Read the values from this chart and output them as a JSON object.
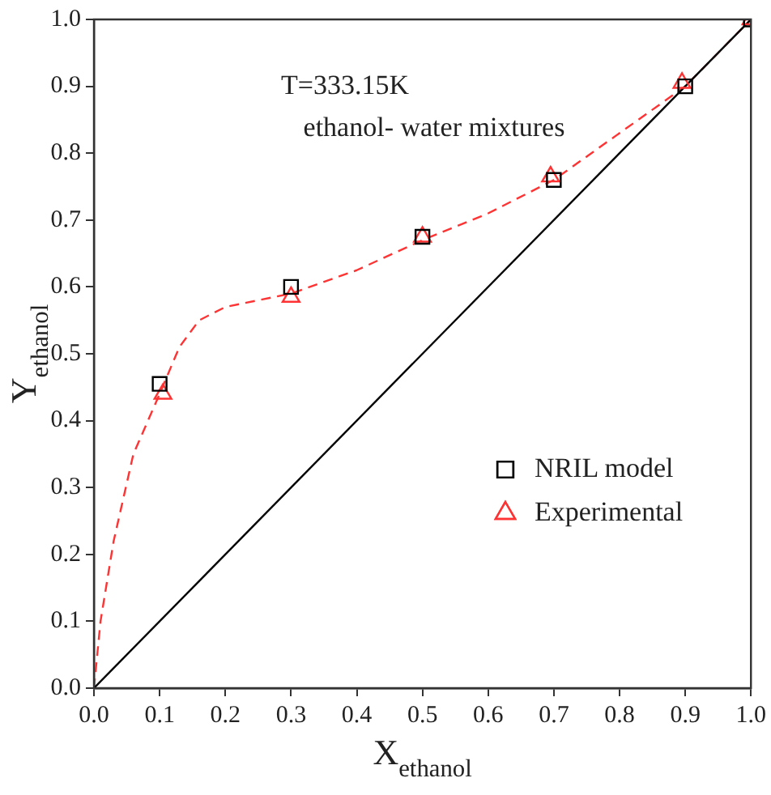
{
  "chart_data": {
    "type": "scatter",
    "xlabel": "X$_{ethanol}$",
    "ylabel": "Y$_{ethanol}$",
    "annotations": [
      "T=333.15K",
      "ethanol- water mixtures"
    ],
    "xlim": [
      0,
      1
    ],
    "ylim": [
      0,
      1
    ],
    "xticks": [
      {
        "value": 0,
        "label": "0.0"
      },
      {
        "value": 0.1,
        "label": "0.1"
      },
      {
        "value": 0.2,
        "label": "0.2"
      },
      {
        "value": 0.3,
        "label": "0.3"
      },
      {
        "value": 0.4,
        "label": "0.4"
      },
      {
        "value": 0.5,
        "label": "0.5"
      },
      {
        "value": 0.6,
        "label": "0.6"
      },
      {
        "value": 0.7,
        "label": "0.7"
      },
      {
        "value": 0.8,
        "label": "0.8"
      },
      {
        "value": 0.9,
        "label": "0.9"
      },
      {
        "value": 1,
        "label": "1.0"
      }
    ],
    "yticks": [
      {
        "value": 0,
        "label": "0.0"
      },
      {
        "value": 0.1,
        "label": "0.1"
      },
      {
        "value": 0.2,
        "label": "0.2"
      },
      {
        "value": 0.3,
        "label": "0.3"
      },
      {
        "value": 0.4,
        "label": "0.4"
      },
      {
        "value": 0.5,
        "label": "0.5"
      },
      {
        "value": 0.6,
        "label": "0.6"
      },
      {
        "value": 0.7,
        "label": "0.7"
      },
      {
        "value": 0.8,
        "label": "0.8"
      },
      {
        "value": 0.9,
        "label": "0.9"
      },
      {
        "value": 1,
        "label": "1.0"
      }
    ],
    "grid": false,
    "legend": "right",
    "series": [
      {
        "type": "line",
        "color": "#000000",
        "line_style": "solid",
        "marker": "none",
        "x": [
          0,
          1
        ],
        "values": [
          0,
          1
        ]
      },
      {
        "type": "line",
        "color": "#ff3333",
        "line_style": "dashed",
        "marker": "none",
        "x": [
          0,
          0.01,
          0.03,
          0.06,
          0.1,
          0.13,
          0.16,
          0.2,
          0.25,
          0.3,
          0.4,
          0.5,
          0.6,
          0.7,
          0.8,
          0.9,
          1
        ],
        "values": [
          0,
          0.1,
          0.22,
          0.35,
          0.44,
          0.51,
          0.55,
          0.57,
          0.58,
          0.59,
          0.625,
          0.67,
          0.71,
          0.76,
          0.83,
          0.9,
          1
        ]
      },
      {
        "name": "NRIL model",
        "color": "#000000",
        "marker": "square",
        "x": [
          0.1,
          0.3,
          0.5,
          0.7,
          0.9,
          1
        ],
        "values": [
          0.455,
          0.6,
          0.675,
          0.76,
          0.9,
          1
        ]
      },
      {
        "name": "Experimental",
        "color": "#ff3333",
        "marker": "triangle",
        "x": [
          0.105,
          0.3,
          0.5,
          0.695,
          0.895,
          1
        ],
        "values": [
          0.44,
          0.585,
          0.675,
          0.765,
          0.905,
          1
        ]
      }
    ]
  }
}
